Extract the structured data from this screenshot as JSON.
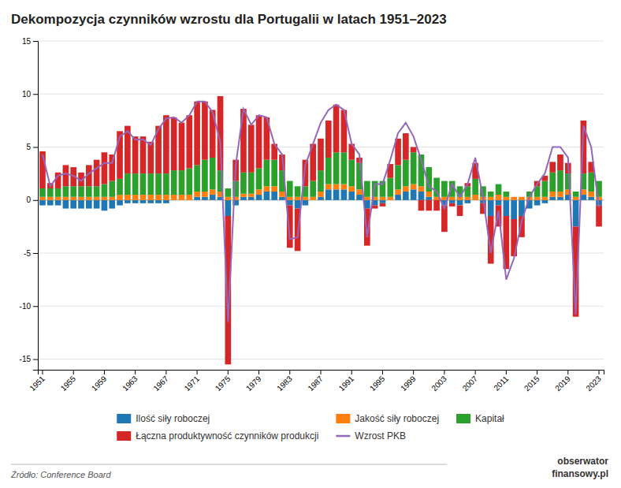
{
  "chart_data": {
    "type": "bar",
    "stacked": true,
    "title": "Dekompozycja czynników wzrostu dla Portugalii w latach 1951–2023",
    "annotations": [
      "Źródło: Conference Board",
      "obserwator",
      "finansowy.pl"
    ],
    "categories": [
      "1951",
      null,
      null,
      null,
      "1955",
      null,
      null,
      null,
      "1959",
      null,
      null,
      null,
      "1963",
      null,
      null,
      null,
      "1967",
      null,
      null,
      null,
      "1971",
      null,
      null,
      null,
      "1975",
      null,
      null,
      null,
      "1979",
      null,
      null,
      null,
      "1983",
      null,
      null,
      null,
      "1987",
      null,
      null,
      null,
      "1991",
      null,
      null,
      null,
      "1995",
      null,
      null,
      null,
      "1999",
      null,
      null,
      null,
      "2003",
      null,
      null,
      null,
      "2007",
      null,
      null,
      null,
      "2011",
      null,
      null,
      null,
      "2015",
      null,
      null,
      null,
      "2019",
      null,
      null,
      null,
      "2023"
    ],
    "series": [
      {
        "name": "Ilość siły roboczej",
        "type": "bar",
        "values": [
          -0.5,
          -0.5,
          -0.5,
          -0.8,
          -0.8,
          -0.8,
          -0.8,
          -0.8,
          -1.0,
          -0.8,
          -0.5,
          -0.3,
          -0.3,
          -0.3,
          -0.3,
          -0.3,
          -0.3,
          0.0,
          0.0,
          0.0,
          0.3,
          0.3,
          0.5,
          0.3,
          -1.5,
          -0.5,
          0.3,
          0.3,
          0.5,
          0.8,
          0.8,
          0.3,
          -0.5,
          -0.8,
          -0.5,
          0.0,
          0.3,
          1.0,
          1.0,
          1.0,
          0.8,
          0.5,
          -0.8,
          -0.5,
          -0.3,
          0.0,
          0.5,
          0.8,
          1.0,
          0.8,
          0.3,
          0.0,
          -0.5,
          -0.3,
          -0.5,
          -0.3,
          0.0,
          -0.3,
          -1.5,
          -0.5,
          -1.5,
          -1.8,
          -1.5,
          -0.8,
          -0.5,
          -0.3,
          0.3,
          0.3,
          0.5,
          -2.5,
          0.5,
          0.3,
          -0.5
        ]
      },
      {
        "name": "Jakość siły roboczej",
        "type": "bar",
        "values": [
          0.3,
          0.3,
          0.3,
          0.3,
          0.3,
          0.3,
          0.3,
          0.3,
          0.3,
          0.3,
          0.5,
          0.5,
          0.5,
          0.5,
          0.5,
          0.5,
          0.5,
          0.5,
          0.5,
          0.5,
          0.5,
          0.5,
          0.5,
          0.5,
          0.3,
          0.3,
          0.3,
          0.3,
          0.5,
          0.5,
          0.5,
          0.5,
          0.3,
          0.3,
          0.3,
          0.3,
          0.5,
          0.5,
          0.5,
          0.5,
          0.5,
          0.5,
          0.3,
          0.3,
          0.3,
          0.3,
          0.5,
          0.5,
          0.5,
          0.5,
          0.5,
          0.3,
          0.3,
          0.3,
          0.3,
          0.3,
          0.5,
          0.3,
          0.3,
          0.5,
          0.3,
          0.3,
          0.3,
          0.3,
          0.3,
          0.3,
          0.5,
          0.5,
          0.5,
          0.3,
          0.5,
          0.5,
          0.3
        ]
      },
      {
        "name": "Kapitał",
        "type": "bar",
        "values": [
          0.8,
          0.8,
          0.8,
          1.0,
          1.0,
          1.0,
          1.0,
          1.0,
          1.2,
          1.5,
          1.5,
          2.0,
          2.0,
          2.0,
          2.0,
          2.0,
          2.0,
          2.3,
          2.3,
          2.5,
          2.5,
          3.0,
          3.0,
          2.0,
          0.8,
          1.5,
          2.0,
          2.0,
          2.0,
          2.5,
          2.5,
          2.0,
          1.5,
          1.0,
          1.0,
          1.5,
          2.0,
          2.5,
          3.0,
          3.0,
          2.5,
          2.5,
          1.5,
          1.5,
          1.5,
          1.8,
          2.3,
          2.5,
          3.0,
          3.0,
          2.3,
          1.8,
          1.5,
          1.5,
          1.0,
          1.0,
          1.5,
          1.0,
          0.5,
          1.0,
          0.5,
          0.0,
          0.0,
          0.5,
          1.0,
          1.5,
          1.8,
          2.0,
          1.5,
          0.5,
          1.5,
          1.8,
          1.5
        ]
      },
      {
        "name": "Łączna produktywność czynników produkcji",
        "type": "bar",
        "values": [
          3.5,
          0.5,
          1.5,
          2.0,
          1.8,
          1.3,
          2.0,
          2.5,
          3.0,
          2.5,
          4.5,
          4.5,
          3.5,
          3.5,
          3.0,
          4.5,
          5.5,
          5.0,
          4.5,
          5.0,
          6.0,
          5.5,
          4.5,
          7.0,
          -14.0,
          2.0,
          6.0,
          4.5,
          5.0,
          4.0,
          1.5,
          1.5,
          -4.0,
          -4.0,
          2.5,
          3.5,
          3.0,
          3.5,
          4.5,
          4.0,
          1.5,
          0.5,
          -3.5,
          -0.3,
          -0.3,
          1.3,
          2.5,
          2.5,
          0.5,
          -1.0,
          -1.0,
          -1.0,
          -2.5,
          -0.3,
          -1.0,
          0.3,
          1.5,
          -1.0,
          -4.5,
          -2.0,
          -5.0,
          -3.5,
          -2.0,
          0.0,
          0.5,
          0.5,
          1.0,
          1.5,
          1.0,
          -8.5,
          5.0,
          1.0,
          -2.0
        ]
      },
      {
        "name": "Wzrost PKB",
        "type": "line",
        "values": [
          4.3,
          1.3,
          2.3,
          2.5,
          2.3,
          1.8,
          2.5,
          3.0,
          3.5,
          3.5,
          6.0,
          6.5,
          5.7,
          5.7,
          5.2,
          6.7,
          7.7,
          7.8,
          7.3,
          8.0,
          9.3,
          9.3,
          8.3,
          5.5,
          -11.5,
          3.3,
          8.6,
          7.1,
          8.0,
          7.8,
          5.3,
          4.3,
          -3.7,
          -3.5,
          3.3,
          5.3,
          7.3,
          8.5,
          9.0,
          8.5,
          5.3,
          4.3,
          -3.5,
          1.5,
          1.5,
          3.8,
          6.3,
          7.3,
          6.0,
          3.8,
          1.3,
          0.8,
          -0.8,
          1.5,
          0.3,
          1.5,
          4.0,
          0.3,
          -5.0,
          -1.0,
          -7.5,
          -5.5,
          -2.0,
          0.3,
          1.5,
          2.5,
          5.0,
          5.0,
          4.0,
          -10.8,
          7.0,
          5.0,
          -0.7
        ]
      }
    ],
    "ylim": [
      -16,
      15
    ],
    "yticks": [
      -15,
      -10,
      -5,
      0,
      5,
      10,
      15
    ],
    "grid": true,
    "legend": "bottom"
  }
}
